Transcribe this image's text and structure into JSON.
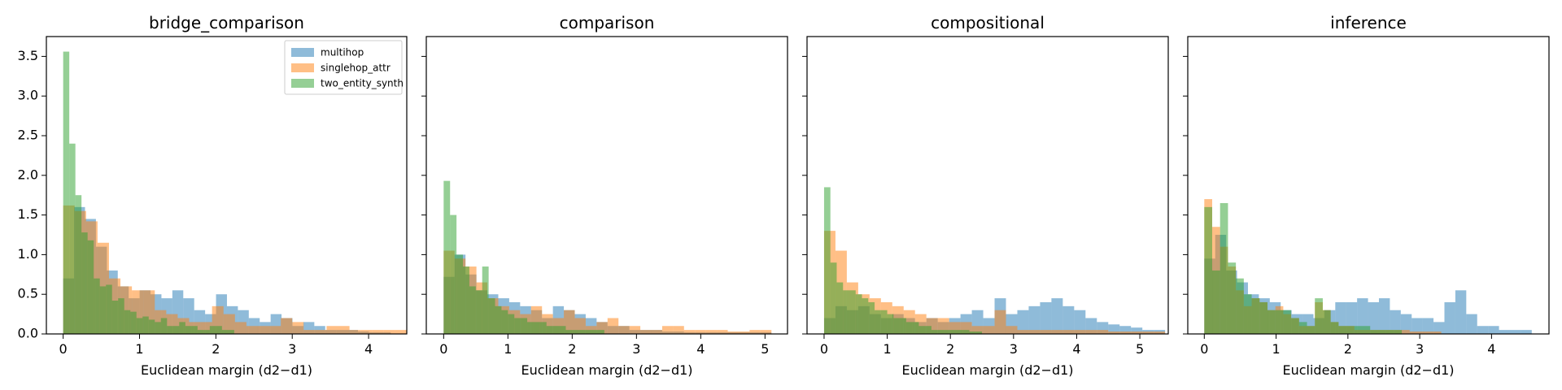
{
  "chart_data": [
    {
      "type": "histogram",
      "title": "bridge_comparison",
      "xlabel": "Euclidean margin (d2−d1)",
      "ylabel": "",
      "xlim": [
        -0.22,
        4.5
      ],
      "ylim": [
        0,
        3.75
      ],
      "xticks": [
        "0",
        "1",
        "2",
        "3",
        "4"
      ],
      "yticks": [
        "0.0",
        "0.5",
        "1.0",
        "1.5",
        "2.0",
        "2.5",
        "3.0",
        "3.5"
      ],
      "legend": "top-right",
      "series": [
        {
          "name": "multihop",
          "color": "#1f77b4",
          "opacity": 0.5,
          "bin_width": 0.143,
          "values": [
            0.7,
            1.6,
            1.45,
            1.1,
            0.8,
            0.6,
            0.45,
            0.55,
            0.5,
            0.45,
            0.55,
            0.45,
            0.3,
            0.25,
            0.5,
            0.35,
            0.3,
            0.2,
            0.15,
            0.25,
            0.2,
            0.1,
            0.15,
            0.1,
            0.05,
            0.05,
            0.05,
            0.03,
            0.02,
            0.02
          ]
        },
        {
          "name": "singlehop_attr",
          "color": "#ff7f0e",
          "opacity": 0.5,
          "bin_width": 0.15,
          "values": [
            1.62,
            1.55,
            1.42,
            1.15,
            0.7,
            0.6,
            0.55,
            0.55,
            0.3,
            0.25,
            0.2,
            0.15,
            0.15,
            0.35,
            0.25,
            0.15,
            0.1,
            0.1,
            0.1,
            0.2,
            0.15,
            0.05,
            0.05,
            0.1,
            0.1,
            0.05,
            0.05,
            0.05,
            0.05,
            0.05
          ]
        },
        {
          "name": "two_entity_synth",
          "color": "#2ca02c",
          "opacity": 0.5,
          "bin_width": 0.08,
          "values": [
            3.56,
            2.4,
            1.75,
            1.28,
            1.18,
            0.7,
            0.6,
            0.62,
            0.42,
            0.45,
            0.3,
            0.28,
            0.2,
            0.22,
            0.18,
            0.15,
            0.2,
            0.1,
            0.1,
            0.15,
            0.1,
            0.1,
            0.05,
            0.05,
            0.1,
            0.1,
            0.05,
            0.05
          ]
        }
      ]
    },
    {
      "type": "histogram",
      "title": "comparison",
      "xlabel": "Euclidean margin (d2−d1)",
      "ylabel": "",
      "xlim": [
        -0.27,
        5.35
      ],
      "ylim": [
        0,
        3.75
      ],
      "xticks": [
        "0",
        "1",
        "2",
        "3",
        "4",
        "5"
      ],
      "yticks": [
        "0.0",
        "0.5",
        "1.0",
        "1.5",
        "2.0",
        "2.5",
        "3.0",
        "3.5"
      ],
      "series": [
        {
          "name": "multihop",
          "color": "#1f77b4",
          "opacity": 0.5,
          "bin_width": 0.17,
          "values": [
            0.72,
            1.0,
            0.75,
            0.55,
            0.5,
            0.45,
            0.4,
            0.35,
            0.3,
            0.2,
            0.35,
            0.3,
            0.25,
            0.2,
            0.15,
            0.1,
            0.1,
            0.05,
            0.05,
            0.05,
            0.03,
            0.03,
            0.02,
            0.02,
            0.02,
            0.02,
            0.02,
            0.02,
            0.02,
            0.02
          ]
        },
        {
          "name": "singlehop_attr",
          "color": "#ff7f0e",
          "opacity": 0.5,
          "bin_width": 0.17,
          "values": [
            1.05,
            0.95,
            0.85,
            0.65,
            0.45,
            0.35,
            0.3,
            0.25,
            0.35,
            0.25,
            0.2,
            0.3,
            0.2,
            0.1,
            0.15,
            0.2,
            0.1,
            0.1,
            0.05,
            0.05,
            0.1,
            0.1,
            0.05,
            0.05,
            0.05,
            0.05,
            0.03,
            0.03,
            0.05,
            0.05
          ]
        },
        {
          "name": "two_entity_synth",
          "color": "#2ca02c",
          "opacity": 0.5,
          "bin_width": 0.1,
          "values": [
            1.93,
            1.5,
            1.0,
            0.85,
            0.6,
            0.55,
            0.85,
            0.45,
            0.35,
            0.3,
            0.25,
            0.2,
            0.2,
            0.15,
            0.15,
            0.15,
            0.1,
            0.1,
            0.1,
            0.05,
            0.05,
            0.05,
            0.05,
            0.05,
            0.05
          ]
        }
      ]
    },
    {
      "type": "histogram",
      "title": "compositional",
      "xlabel": "Euclidean margin (d2−d1)",
      "ylabel": "",
      "xlim": [
        -0.27,
        5.45
      ],
      "ylim": [
        0,
        3.75
      ],
      "xticks": [
        "0",
        "1",
        "2",
        "3",
        "4",
        "5"
      ],
      "yticks": [
        "0.0",
        "0.5",
        "1.0",
        "1.5",
        "2.0",
        "2.5",
        "3.0",
        "3.5"
      ],
      "series": [
        {
          "name": "multihop",
          "color": "#1f77b4",
          "opacity": 0.5,
          "bin_width": 0.18,
          "values": [
            0.2,
            0.35,
            0.3,
            0.35,
            0.25,
            0.2,
            0.25,
            0.2,
            0.15,
            0.2,
            0.15,
            0.2,
            0.25,
            0.3,
            0.2,
            0.45,
            0.25,
            0.3,
            0.35,
            0.4,
            0.45,
            0.35,
            0.3,
            0.2,
            0.15,
            0.12,
            0.1,
            0.08,
            0.05,
            0.05
          ]
        },
        {
          "name": "singlehop_attr",
          "color": "#ff7f0e",
          "opacity": 0.5,
          "bin_width": 0.18,
          "values": [
            1.3,
            1.05,
            0.65,
            0.5,
            0.45,
            0.4,
            0.35,
            0.3,
            0.25,
            0.2,
            0.2,
            0.15,
            0.15,
            0.1,
            0.1,
            0.3,
            0.1,
            0.05,
            0.05,
            0.05,
            0.05,
            0.05,
            0.05,
            0.05,
            0.05,
            0.03,
            0.03,
            0.03,
            0.03,
            0.03
          ]
        },
        {
          "name": "two_entity_synth",
          "color": "#2ca02c",
          "opacity": 0.5,
          "bin_width": 0.1,
          "values": [
            1.85,
            0.9,
            0.65,
            0.55,
            0.55,
            0.5,
            0.45,
            0.4,
            0.3,
            0.3,
            0.25,
            0.2,
            0.2,
            0.15,
            0.15,
            0.1,
            0.1,
            0.05,
            0.05,
            0.05,
            0.05,
            0.05,
            0.05,
            0.03,
            0.03
          ]
        }
      ]
    },
    {
      "type": "histogram",
      "title": "inference",
      "xlabel": "Euclidean margin (d2−d1)",
      "ylabel": "",
      "xlim": [
        -0.23,
        4.8
      ],
      "ylim": [
        0,
        3.75
      ],
      "xticks": [
        "0",
        "1",
        "2",
        "3",
        "4"
      ],
      "yticks": [
        "0.0",
        "0.5",
        "1.0",
        "1.5",
        "2.0",
        "2.5",
        "3.0",
        "3.5"
      ],
      "series": [
        {
          "name": "multihop",
          "color": "#1f77b4",
          "opacity": 0.5,
          "bin_width": 0.152,
          "values": [
            0.95,
            1.25,
            0.8,
            0.65,
            0.5,
            0.45,
            0.4,
            0.3,
            0.25,
            0.25,
            0.2,
            0.3,
            0.4,
            0.4,
            0.45,
            0.4,
            0.45,
            0.3,
            0.25,
            0.2,
            0.2,
            0.15,
            0.4,
            0.55,
            0.25,
            0.1,
            0.1,
            0.05,
            0.05,
            0.05
          ]
        },
        {
          "name": "singlehop_attr",
          "color": "#ff7f0e",
          "opacity": 0.5,
          "bin_width": 0.11,
          "values": [
            1.7,
            1.35,
            1.1,
            0.85,
            0.55,
            0.35,
            0.45,
            0.4,
            0.3,
            0.35,
            0.25,
            0.2,
            0.1,
            0.1,
            0.4,
            0.3,
            0.15,
            0.1,
            0.1,
            0.05,
            0.05,
            0.05,
            0.05,
            0.05,
            0.05,
            0.05,
            0.03,
            0.03,
            0.03,
            0.03
          ]
        },
        {
          "name": "two_entity_synth",
          "color": "#2ca02c",
          "opacity": 0.5,
          "bin_width": 0.11,
          "values": [
            1.6,
            0.8,
            1.65,
            0.9,
            0.7,
            0.5,
            0.45,
            0.4,
            0.3,
            0.3,
            0.3,
            0.2,
            0.15,
            0.1,
            0.45,
            0.3,
            0.15,
            0.1,
            0.1,
            0.1,
            0.1,
            0.05,
            0.05,
            0.05,
            0.05
          ]
        }
      ]
    }
  ]
}
